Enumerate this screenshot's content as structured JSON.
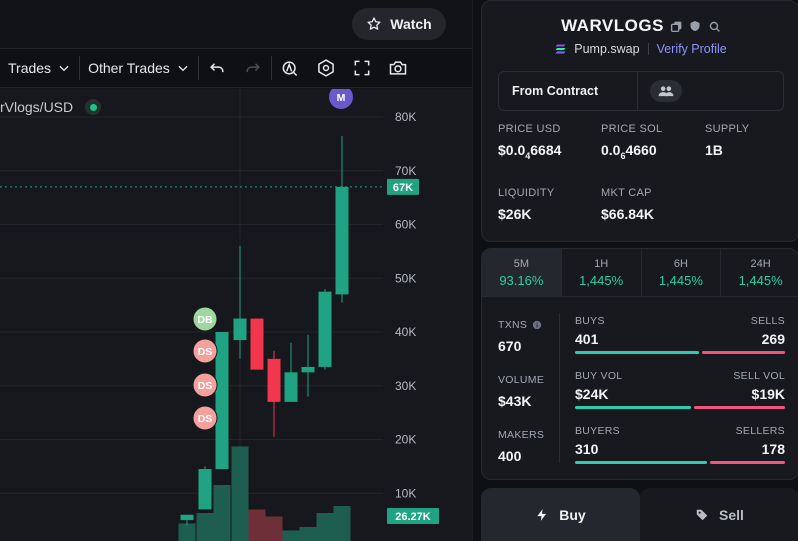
{
  "header": {
    "watch_label": "Watch"
  },
  "toolbar": {
    "trades_label": "Trades",
    "other_trades_label": "Other Trades",
    "icons": [
      "undo-icon",
      "redo-icon",
      "indicator-icon",
      "settings-hexagon-icon",
      "fullscreen-icon",
      "camera-icon"
    ]
  },
  "chart": {
    "pair_label": "rVlogs/USD",
    "marker_m": "M",
    "trade_markers": [
      "DB",
      "DS",
      "DS",
      "DS"
    ],
    "price_labels": [
      "80K",
      "70K",
      "60K",
      "50K",
      "40K",
      "30K",
      "20K",
      "10K"
    ],
    "current_price_tag": "67K",
    "volume_tag": "26.27K",
    "colors": {
      "up": "#1fa383",
      "down": "#f2364b",
      "buy_marker": "#9ed79f",
      "sell_marker": "#f4a09c",
      "m_marker": "#6a5acd"
    }
  },
  "chart_data": {
    "type": "candlestick",
    "y_axis_ticks": [
      "80K",
      "70K",
      "60K",
      "50K",
      "40K",
      "30K",
      "20K",
      "10K"
    ],
    "ylim": [
      7,
      84
    ],
    "last_price": 67,
    "last_volume": 26.27,
    "candles": [
      {
        "o": 5,
        "h": 6,
        "l": 4,
        "c": 6,
        "dir": "up"
      },
      {
        "o": 7,
        "h": 15,
        "l": 7,
        "c": 14.5,
        "dir": "up"
      },
      {
        "o": 14.5,
        "h": 40,
        "l": 14.5,
        "c": 40,
        "dir": "up"
      },
      {
        "o": 38.5,
        "h": 56,
        "l": 35,
        "c": 42.5,
        "dir": "up"
      },
      {
        "o": 42.5,
        "h": 42.5,
        "l": 33,
        "c": 33,
        "dir": "down"
      },
      {
        "o": 35,
        "h": 36.5,
        "l": 20.5,
        "c": 27,
        "dir": "down"
      },
      {
        "o": 27,
        "h": 38,
        "l": 27,
        "c": 32.5,
        "dir": "up"
      },
      {
        "o": 32.5,
        "h": 39.5,
        "l": 28,
        "c": 33.5,
        "dir": "up"
      },
      {
        "o": 33.5,
        "h": 48,
        "l": 33,
        "c": 47.5,
        "dir": "up"
      },
      {
        "o": 47,
        "h": 76.5,
        "l": 45.5,
        "c": 67,
        "dir": "up"
      }
    ],
    "volumes": [
      {
        "v": 2.5,
        "dir": "up"
      },
      {
        "v": 4,
        "dir": "up"
      },
      {
        "v": 8,
        "dir": "up"
      },
      {
        "v": 13.5,
        "dir": "up"
      },
      {
        "v": 4.5,
        "dir": "down"
      },
      {
        "v": 3.5,
        "dir": "down"
      },
      {
        "v": 1.5,
        "dir": "up"
      },
      {
        "v": 2,
        "dir": "up"
      },
      {
        "v": 4,
        "dir": "up"
      },
      {
        "v": 5,
        "dir": "up"
      }
    ]
  },
  "token": {
    "name": "WARVLOGS",
    "dex": "Pump.swap",
    "verify_label": "Verify Profile",
    "from_contract_label": "From Contract",
    "stats": [
      {
        "label": "PRICE USD",
        "value_main": "$0.0",
        "value_sub": "4",
        "value_tail": "6684"
      },
      {
        "label": "PRICE SOL",
        "value_main": "0.0",
        "value_sub": "6",
        "value_tail": "4660"
      },
      {
        "label": "SUPPLY",
        "value_main": "1B",
        "value_sub": "",
        "value_tail": ""
      },
      {
        "label": "LIQUIDITY",
        "value_main": "$26K",
        "value_sub": "",
        "value_tail": ""
      },
      {
        "label": "MKT CAP",
        "value_main": "$66.84K",
        "value_sub": "",
        "value_tail": ""
      }
    ]
  },
  "performance": {
    "tabs": [
      {
        "label": "5M",
        "value": "93.16%"
      },
      {
        "label": "1H",
        "value": "1,445%"
      },
      {
        "label": "6H",
        "value": "1,445%"
      },
      {
        "label": "24H",
        "value": "1,445%"
      }
    ],
    "txns_label": "TXNS",
    "txns_value": "670",
    "volume_label": "VOLUME",
    "volume_value": "$43K",
    "makers_label": "MAKERS",
    "makers_value": "400",
    "buys_label": "BUYS",
    "buys_value": "401",
    "sells_label": "SELLS",
    "sells_value": "269",
    "buys_share": 0.6,
    "buy_vol_label": "BUY VOL",
    "buy_vol_value": "$24K",
    "sell_vol_label": "SELL VOL",
    "sell_vol_value": "$19K",
    "buy_vol_share": 0.56,
    "buyers_label": "BUYERS",
    "buyers_value": "310",
    "sellers_label": "SELLERS",
    "sellers_value": "178",
    "buyers_share": 0.64
  },
  "trade": {
    "buy_label": "Buy",
    "sell_label": "Sell"
  }
}
